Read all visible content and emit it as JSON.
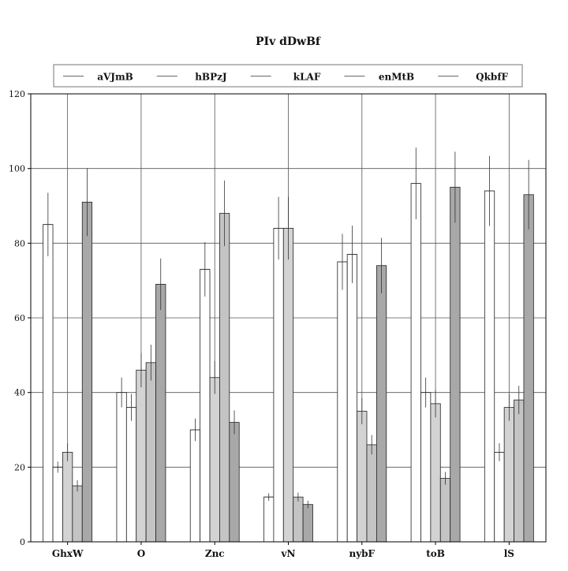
{
  "chart_data": {
    "type": "bar",
    "title": "PIv dDwBf",
    "xlabel": "",
    "ylabel": "",
    "ylim": [
      0,
      120
    ],
    "yticks": [
      0,
      20,
      40,
      60,
      80,
      100,
      120
    ],
    "grid": "horizontal",
    "legend_position": "top",
    "categories": [
      "GhxW",
      "O",
      "Znc",
      "vN",
      "nybF",
      "toB",
      "lS"
    ],
    "series": [
      {
        "name": "aVJmB",
        "color": "#ffffff",
        "values": [
          85,
          40,
          30,
          12,
          75,
          96,
          94
        ],
        "errors": [
          8.5,
          4,
          3,
          1,
          7.5,
          9.6,
          9.4
        ]
      },
      {
        "name": "hBPzJ",
        "color": "#ffffff",
        "values": [
          20,
          36,
          73,
          84,
          77,
          40,
          24
        ],
        "errors": [
          1.5,
          3.6,
          7.3,
          8.4,
          7.7,
          4,
          2.4
        ]
      },
      {
        "name": "kLAF",
        "color": "#d3d3d3",
        "values": [
          24,
          46,
          44,
          84,
          35,
          37,
          36
        ],
        "errors": [
          2.4,
          4.6,
          4.4,
          8.4,
          3.5,
          3.7,
          3.6
        ]
      },
      {
        "name": "enMtB",
        "color": "#c4c4c4",
        "values": [
          15,
          48,
          88,
          12,
          26,
          17,
          38
        ],
        "errors": [
          1.5,
          4.8,
          8.8,
          1.2,
          2.6,
          1.7,
          3.8
        ]
      },
      {
        "name": "QkbfF",
        "color": "#a8a8a8",
        "values": [
          91,
          69,
          32,
          10,
          74,
          95,
          93
        ],
        "errors": [
          9.1,
          6.9,
          3.2,
          1,
          7.4,
          9.5,
          9.3
        ]
      }
    ]
  }
}
